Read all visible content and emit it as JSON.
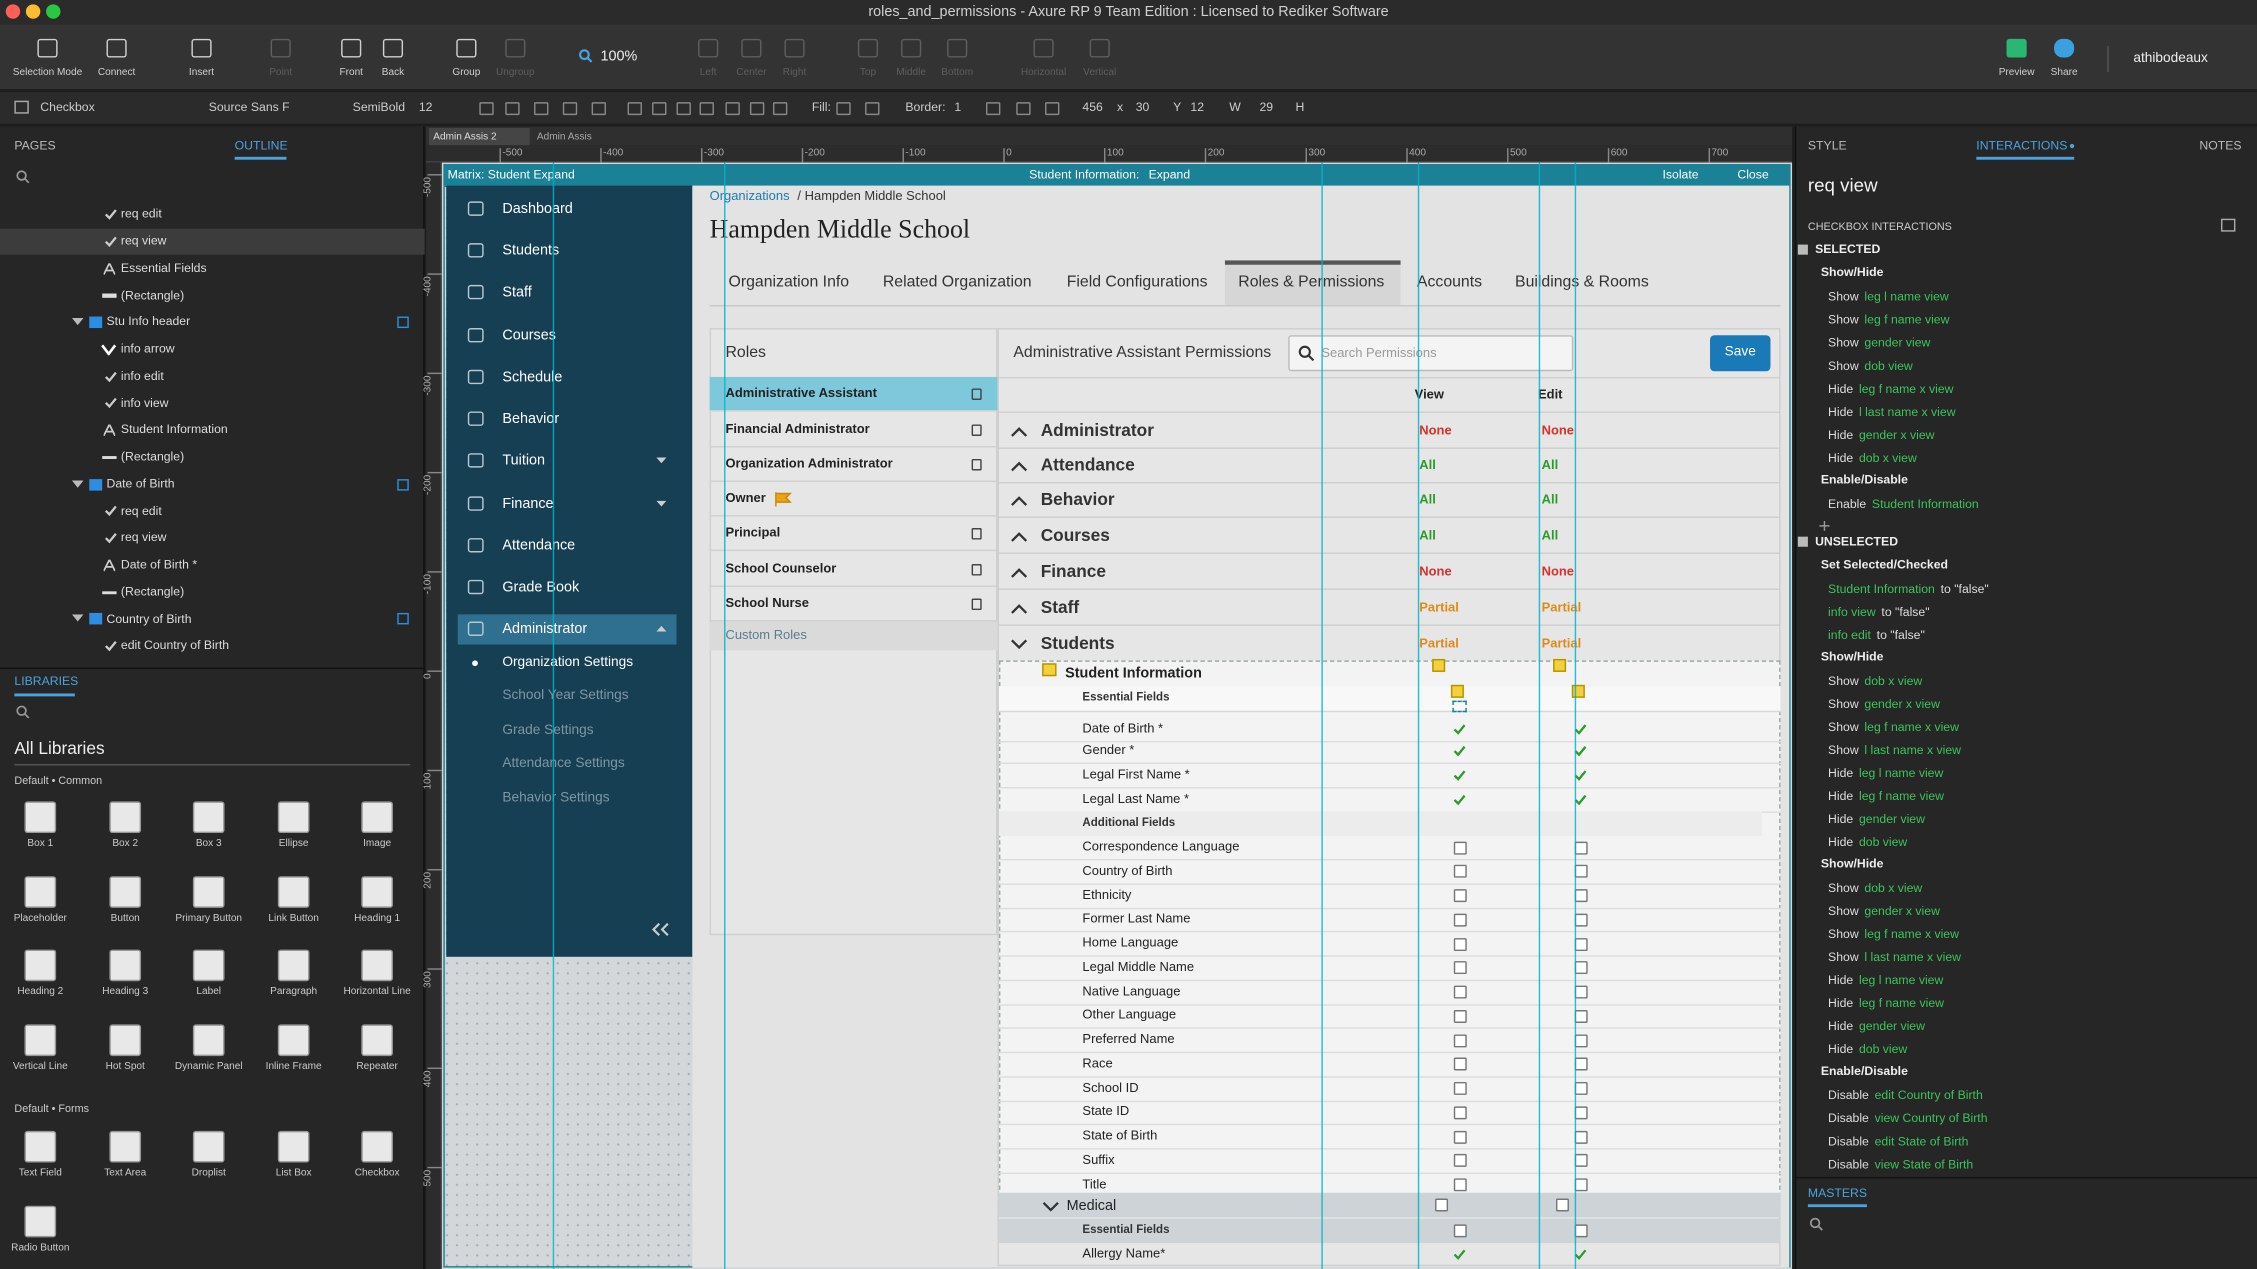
{
  "window": {
    "title": "roles_and_permissions - Axure RP 9 Team Edition : Licensed to Rediker Software"
  },
  "toolbar": {
    "items": [
      "Selection Mode",
      "Connect",
      "Insert",
      "Point",
      "Front",
      "Back",
      "Group",
      "Ungroup",
      "100%",
      "Left",
      "Center",
      "Right",
      "Top",
      "Middle",
      "Bottom",
      "Horizontal",
      "Vertical",
      "Preview",
      "Share",
      "athibodeaux"
    ]
  },
  "format_bar": {
    "items": [
      "Checkbox",
      "Source Sans F",
      "SemiBold",
      "12",
      "Fill:",
      "Border:",
      "1",
      "456",
      "x",
      "30",
      "Y",
      "12",
      "W",
      "29",
      "H"
    ]
  },
  "left_panel": {
    "tabs": [
      "PAGES",
      "OUTLINE"
    ],
    "outline": [
      "req edit",
      "req view",
      "Essential Fields",
      "(Rectangle)",
      "Stu Info header",
      "info arrow",
      "info edit",
      "info view",
      "Student Information",
      "(Rectangle)",
      "Date of Birth",
      "req edit",
      "req view",
      "Date of Birth *",
      "(Rectangle)",
      "Country of Birth",
      "edit Country of Birth"
    ]
  },
  "libraries": {
    "title": "LIBRARIES",
    "selector": "All Libraries",
    "groups": [
      {
        "title": "Default • Common",
        "widgets": [
          "Box 1",
          "Box 2",
          "Box 3",
          "Ellipse",
          "Image",
          "Placeholder",
          "Button",
          "Primary Button",
          "Link Button",
          "Heading 1",
          "Heading 2",
          "Heading 3",
          "Label",
          "Paragraph",
          "Horizontal Line",
          "Vertical Line",
          "Hot Spot",
          "Dynamic Panel",
          "Inline Frame",
          "Repeater"
        ]
      },
      {
        "title": "Default • Forms",
        "widgets": [
          "Text Field",
          "Text Area",
          "Droplist",
          "List Box",
          "Checkbox",
          "Radio Button"
        ]
      }
    ]
  },
  "canvas": {
    "tabs": [
      "Admin Assis 2",
      "Admin Assis"
    ],
    "ruler": {
      "xticks": [
        -500,
        -400,
        -300,
        -200,
        -100,
        0,
        100,
        200,
        300,
        400,
        500,
        600,
        700
      ],
      "yticks": [
        -500,
        -400,
        -300,
        -200,
        -100,
        0,
        100,
        200,
        300,
        400,
        500
      ]
    },
    "panel_bar": {
      "name": "Matrix: Student Expand",
      "state_label": "Student Information:",
      "state": "Expand",
      "isolate": "Isolate",
      "close": "Close"
    }
  },
  "app": {
    "nav": [
      "Dashboard",
      "Students",
      "Staff",
      "Courses",
      "Schedule",
      "Behavior",
      "Tuition",
      "Finance",
      "Attendance",
      "Grade Book",
      "Administrator"
    ],
    "subnav": [
      "Organization Settings",
      "School Year Settings",
      "Grade Settings",
      "Attendance Settings",
      "Behavior Settings"
    ],
    "breadcrumb": {
      "link": "Organizations",
      "rest": "/ Hampden Middle School"
    },
    "heading": "Hampden Middle School",
    "tabs": [
      "Organization Info",
      "Related Organization",
      "Field Configurations",
      "Roles & Permissions",
      "Accounts",
      "Buildings & Rooms"
    ],
    "roles": {
      "title": "Roles",
      "items": [
        "Administrative Assistant",
        "Financial Administrator",
        "Organization Administrator",
        "Owner",
        "Principal",
        "School Counselor",
        "School Nurse"
      ],
      "custom": "Custom Roles"
    },
    "permissions": {
      "title": "Administrative Assistant Permissions",
      "search": "Search Permissions",
      "save": "Save",
      "columns": [
        "View",
        "Edit"
      ],
      "status_colors": {
        "None": "#d9302c",
        "All": "#2c9a2c",
        "Partial": "#e08a1a"
      },
      "modules": [
        {
          "name": "Administrator",
          "view": "None",
          "edit": "None"
        },
        {
          "name": "Attendance",
          "view": "All",
          "edit": "All"
        },
        {
          "name": "Behavior",
          "view": "All",
          "edit": "All"
        },
        {
          "name": "Courses",
          "view": "All",
          "edit": "All"
        },
        {
          "name": "Finance",
          "view": "None",
          "edit": "None"
        },
        {
          "name": "Staff",
          "view": "Partial",
          "edit": "Partial"
        },
        {
          "name": "Students",
          "view": "Partial",
          "edit": "Partial"
        }
      ],
      "student_information": {
        "title": "Student Information",
        "essential_title": "Essential Fields",
        "essential": [
          "Date of Birth *",
          "Gender *",
          "Legal First Name *",
          "Legal Last Name *"
        ],
        "additional_title": "Additional Fields",
        "additional": [
          "Correspondence Language",
          "Country of Birth",
          "Ethnicity",
          "Former Last Name",
          "Home Language",
          "Legal Middle Name",
          "Native Language",
          "Other Language",
          "Preferred Name",
          "Race",
          "School ID",
          "State ID",
          "State of Birth",
          "Suffix",
          "Title"
        ]
      },
      "medical": {
        "title": "Medical",
        "essential_title": "Essential Fields",
        "essential": [
          "Allergy Name*"
        ]
      }
    }
  },
  "right_panel": {
    "tabs": [
      "STYLE",
      "INTERACTIONS",
      "NOTES"
    ],
    "selection": "req view",
    "heading": "CHECKBOX INTERACTIONS",
    "masters": "MASTERS",
    "sections": [
      {
        "title": "SELECTED",
        "groups": [
          {
            "title": "Show/Hide",
            "actions": [
              {
                "verb": "Show",
                "target": "leg l name view"
              },
              {
                "verb": "Show",
                "target": "leg f name view"
              },
              {
                "verb": "Show",
                "target": "gender view"
              },
              {
                "verb": "Show",
                "target": "dob view"
              },
              {
                "verb": "Hide",
                "target": "leg f name x view"
              },
              {
                "verb": "Hide",
                "target": "l last name x view"
              },
              {
                "verb": "Hide",
                "target": "gender x view"
              },
              {
                "verb": "Hide",
                "target": "dob x view"
              }
            ]
          },
          {
            "title": "Enable/Disable",
            "actions": [
              {
                "verb": "Enable",
                "target": "Student Information"
              }
            ]
          }
        ]
      },
      {
        "title": "UNSELECTED",
        "groups": [
          {
            "title": "Set Selected/Checked",
            "actions": [
              {
                "target": "Student Information",
                "suffix": "to \"false\""
              },
              {
                "target": "info view",
                "suffix": "to \"false\""
              },
              {
                "target": "info edit",
                "suffix": "to \"false\""
              }
            ]
          },
          {
            "title": "Show/Hide",
            "actions": [
              {
                "verb": "Show",
                "target": "dob x view"
              },
              {
                "verb": "Show",
                "target": "gender x view"
              },
              {
                "verb": "Show",
                "target": "leg f name x view"
              },
              {
                "verb": "Show",
                "target": "l last name x view"
              },
              {
                "verb": "Hide",
                "target": "leg l name view"
              },
              {
                "verb": "Hide",
                "target": "leg f name view"
              },
              {
                "verb": "Hide",
                "target": "gender view"
              },
              {
                "verb": "Hide",
                "target": "dob view"
              }
            ]
          },
          {
            "title": "Show/Hide",
            "actions": [
              {
                "verb": "Show",
                "target": "dob x view"
              },
              {
                "verb": "Show",
                "target": "gender x view"
              },
              {
                "verb": "Show",
                "target": "leg f name x view"
              },
              {
                "verb": "Show",
                "target": "l last name x view"
              },
              {
                "verb": "Hide",
                "target": "leg l name view"
              },
              {
                "verb": "Hide",
                "target": "leg f name view"
              },
              {
                "verb": "Hide",
                "target": "gender view"
              },
              {
                "verb": "Hide",
                "target": "dob view"
              }
            ]
          },
          {
            "title": "Enable/Disable",
            "actions": [
              {
                "verb": "Disable",
                "target": "edit Country of Birth"
              },
              {
                "verb": "Disable",
                "target": "view Country of Birth"
              },
              {
                "verb": "Disable",
                "target": "edit State of Birth"
              },
              {
                "verb": "Disable",
                "target": "view State of Birth"
              }
            ]
          }
        ]
      }
    ]
  }
}
